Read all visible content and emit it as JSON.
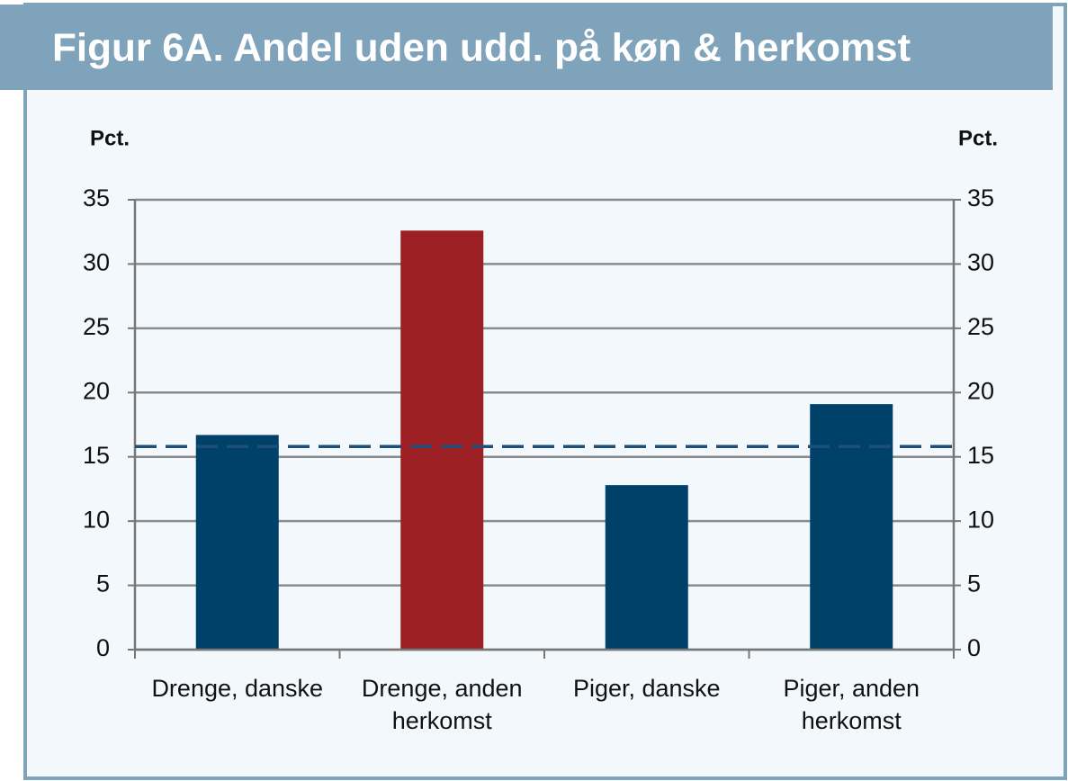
{
  "chart_data": {
    "type": "bar",
    "title": "Figur 6A. Andel uden udd. på køn & herkomst",
    "y_label": "Pct.",
    "y2_label": "Pct.",
    "categories": [
      "Drenge, danske",
      "Drenge, anden\nherkomst",
      "Piger, danske",
      "Piger, anden\nherkomst"
    ],
    "values": [
      16.7,
      32.6,
      12.8,
      19.1
    ],
    "colors": [
      "#00416a",
      "#9b1f23",
      "#00416a",
      "#00416a"
    ],
    "ylim": [
      0,
      35
    ],
    "yticks": [
      0,
      5,
      10,
      15,
      20,
      25,
      30,
      35
    ],
    "y2lim": [
      0,
      35
    ],
    "y2ticks": [
      0,
      5,
      10,
      15,
      20,
      25,
      30,
      35
    ],
    "grid": true,
    "reference_line": {
      "value": 15.8,
      "color": "#1f4e79",
      "style": "dashed"
    }
  }
}
